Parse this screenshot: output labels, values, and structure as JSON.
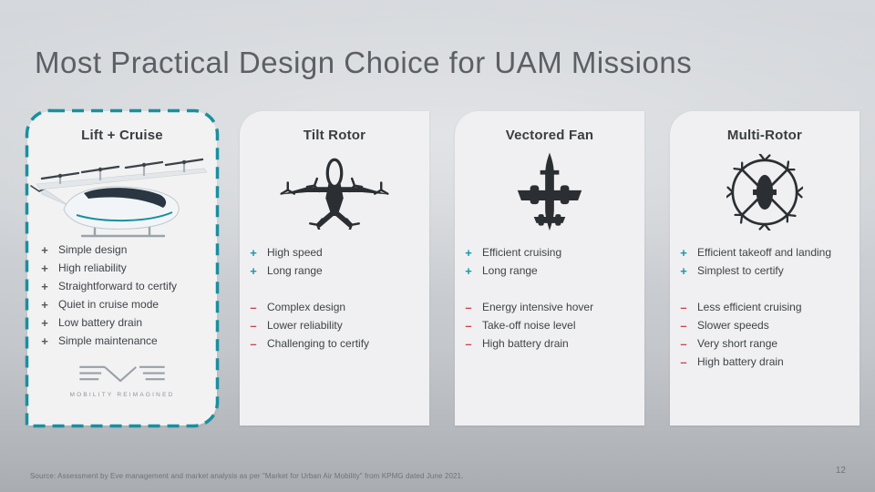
{
  "slide": {
    "title": "Most Practical Design Choice for UAM Missions",
    "source": "Source: Assessment by Eve management and market analysis as per \"Market for Urban Air Mobility\" from KPMG dated June 2021.",
    "page_number": "12"
  },
  "markers": {
    "pro": "+",
    "con": "–"
  },
  "colors": {
    "accent_teal": "#1A8F9F",
    "pro_marker": "#1B97A9",
    "con_marker": "#C9444D",
    "card_background": "#F0F0F2",
    "title_text": "#5C5F63",
    "body_text": "#3F4347",
    "silhouette": "#2B2F33"
  },
  "columns": [
    {
      "title": "Lift + Cruise",
      "icon": "eve-lift-cruise-aircraft-render",
      "highlighted": true,
      "pro_marker_color": "#54585C",
      "pros": [
        "Simple design",
        "High reliability",
        "Straightforward to certify",
        "Quiet in cruise mode",
        "Low battery drain",
        "Simple maintenance"
      ],
      "cons": [],
      "logo": {
        "brand": "EVE",
        "tagline": "MOBILITY REIMAGINED"
      }
    },
    {
      "title": "Tilt Rotor",
      "icon": "tilt-rotor-silhouette",
      "highlighted": false,
      "pro_marker_color": "#1B97A9",
      "pros": [
        "High speed",
        "Long range"
      ],
      "cons": [
        "Complex design",
        "Lower reliability",
        "Challenging to certify"
      ]
    },
    {
      "title": "Vectored Fan",
      "icon": "vectored-fan-silhouette",
      "highlighted": false,
      "pro_marker_color": "#1B97A9",
      "pros": [
        "Efficient cruising",
        "Long range"
      ],
      "cons": [
        "Energy intensive hover",
        "Take-off noise level",
        "High battery drain"
      ]
    },
    {
      "title": "Multi-Rotor",
      "icon": "multi-rotor-silhouette",
      "highlighted": false,
      "pro_marker_color": "#1B97A9",
      "pros": [
        "Efficient takeoff and landing",
        "Simplest to certify"
      ],
      "cons": [
        "Less efficient cruising",
        "Slower speeds",
        "Very short range",
        "High battery drain"
      ]
    }
  ]
}
